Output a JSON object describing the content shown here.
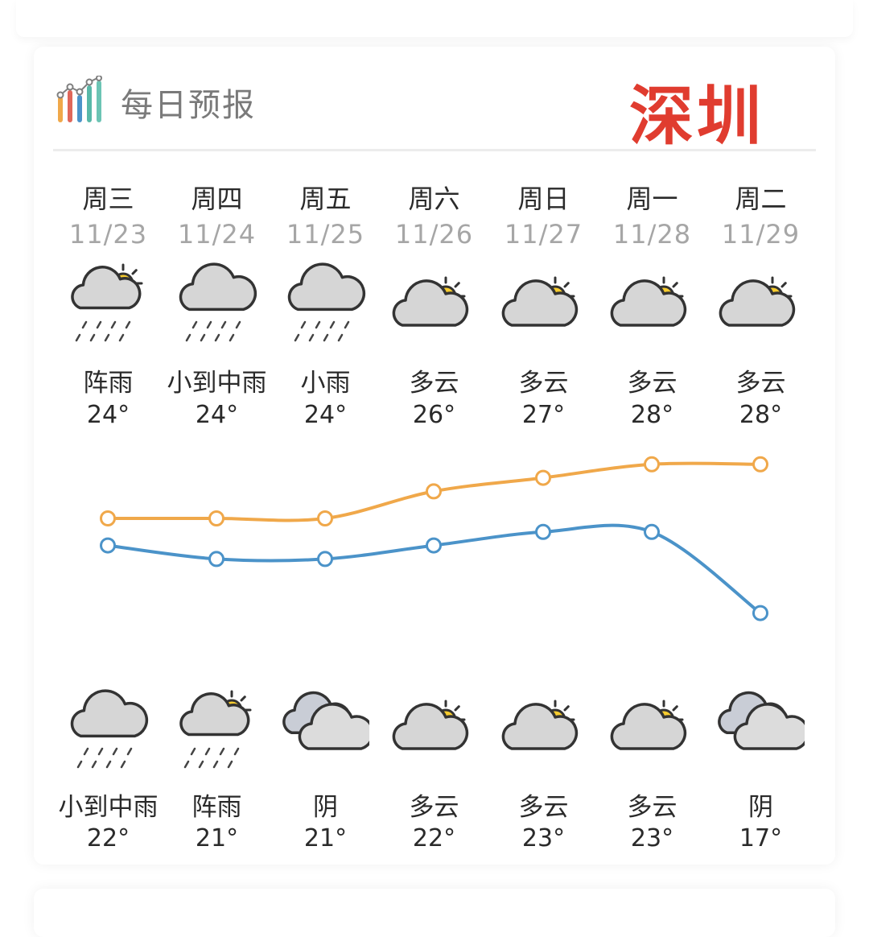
{
  "header": {
    "title": "每日预报",
    "city": "深圳"
  },
  "days": [
    {
      "weekday": "周三",
      "date": "11/23",
      "day_icon": "partly-cloudy-rain-icon",
      "day_condition": "阵雨",
      "high": "24°",
      "night_icon": "cloud-rain-icon",
      "night_condition": "小到中雨",
      "low": "22°"
    },
    {
      "weekday": "周四",
      "date": "11/24",
      "day_icon": "cloud-rain-icon",
      "day_condition": "小到中雨",
      "high": "24°",
      "night_icon": "partly-cloudy-rain-icon",
      "night_condition": "阵雨",
      "low": "21°"
    },
    {
      "weekday": "周五",
      "date": "11/25",
      "day_icon": "cloud-rain-icon",
      "day_condition": "小雨",
      "high": "24°",
      "night_icon": "overcast-icon",
      "night_condition": "阴",
      "low": "21°"
    },
    {
      "weekday": "周六",
      "date": "11/26",
      "day_icon": "partly-cloudy-icon",
      "day_condition": "多云",
      "high": "26°",
      "night_icon": "partly-cloudy-icon",
      "night_condition": "多云",
      "low": "22°"
    },
    {
      "weekday": "周日",
      "date": "11/27",
      "day_icon": "partly-cloudy-icon",
      "day_condition": "多云",
      "high": "27°",
      "night_icon": "partly-cloudy-icon",
      "night_condition": "多云",
      "low": "23°"
    },
    {
      "weekday": "周一",
      "date": "11/28",
      "day_icon": "partly-cloudy-icon",
      "day_condition": "多云",
      "high": "28°",
      "night_icon": "partly-cloudy-icon",
      "night_condition": "多云",
      "low": "23°"
    },
    {
      "weekday": "周二",
      "date": "11/29",
      "day_icon": "partly-cloudy-icon",
      "day_condition": "多云",
      "high": "28°",
      "night_icon": "overcast-icon",
      "night_condition": "阴",
      "low": "17°"
    }
  ],
  "chart_data": {
    "type": "line",
    "categories": [
      "周三",
      "周四",
      "周五",
      "周六",
      "周日",
      "周一",
      "周二"
    ],
    "series": [
      {
        "values": [
          24,
          24,
          24,
          26,
          27,
          28,
          28
        ],
        "color": "#f0a84a"
      },
      {
        "values": [
          22,
          21,
          21,
          22,
          23,
          23,
          17
        ],
        "color": "#4b93c9"
      }
    ]
  },
  "colors": {
    "accent": "#e03c2f",
    "high_line": "#f0a84a",
    "low_line": "#4b93c9",
    "sun": "#f7cc2e",
    "cloud": "#d6d6d6"
  }
}
